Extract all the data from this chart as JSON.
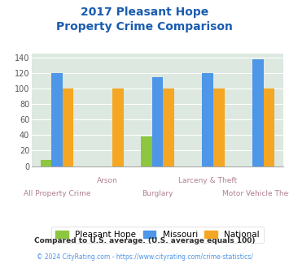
{
  "title_line1": "2017 Pleasant Hope",
  "title_line2": "Property Crime Comparison",
  "categories": [
    "All Property Crime",
    "Arson",
    "Burglary",
    "Larceny & Theft",
    "Motor Vehicle Theft"
  ],
  "pleasant_hope": [
    8,
    0,
    38,
    0,
    0
  ],
  "missouri": [
    120,
    0,
    115,
    120,
    138
  ],
  "national": [
    100,
    100,
    100,
    100,
    100
  ],
  "color_pleasant_hope": "#8dc63f",
  "color_missouri": "#4d96e8",
  "color_national": "#f5a623",
  "bg_color": "#dce8e0",
  "ylim": [
    0,
    145
  ],
  "yticks": [
    0,
    20,
    40,
    60,
    80,
    100,
    120,
    140
  ],
  "legend_labels": [
    "Pleasant Hope",
    "Missouri",
    "National"
  ],
  "footnote1": "Compared to U.S. average. (U.S. average equals 100)",
  "footnote2": "© 2024 CityRating.com - https://www.cityrating.com/crime-statistics/",
  "title_color": "#1a5cb0",
  "footnote1_color": "#2c2c2c",
  "footnote2_color": "#4d96e8",
  "label_color": "#b08090",
  "bar_width": 0.22
}
